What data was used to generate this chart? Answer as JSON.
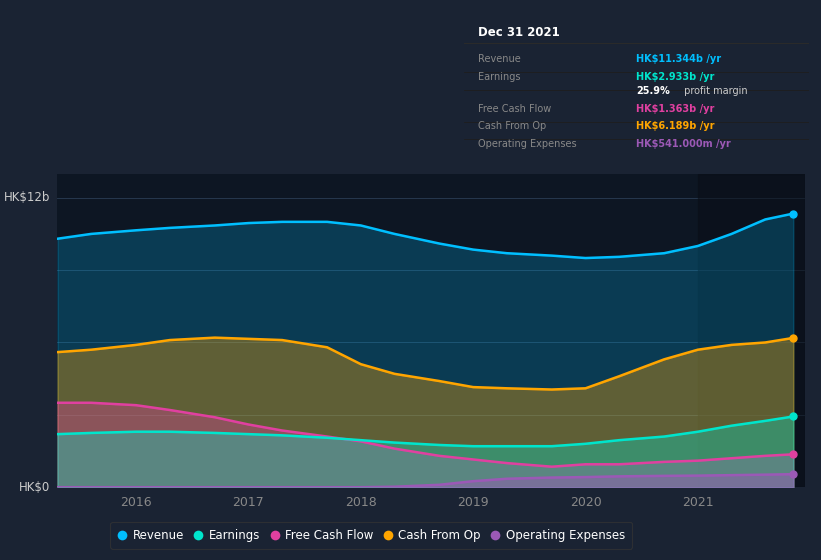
{
  "bg_color": "#1a2333",
  "plot_bg_color": "#0d1623",
  "ylabel_top": "HK$12b",
  "ylabel_bot": "HK$0",
  "xlabel_ticks": [
    "2016",
    "2017",
    "2018",
    "2019",
    "2020",
    "2021"
  ],
  "xtick_positions": [
    2016,
    2017,
    2018,
    2019,
    2020,
    2021
  ],
  "legend_items": [
    {
      "label": "Revenue",
      "color": "#00bfff"
    },
    {
      "label": "Earnings",
      "color": "#00e5cc"
    },
    {
      "label": "Free Cash Flow",
      "color": "#e040a0"
    },
    {
      "label": "Cash From Op",
      "color": "#ffa500"
    },
    {
      "label": "Operating Expenses",
      "color": "#9b59b6"
    }
  ],
  "info_box": {
    "title": "Dec 31 2021",
    "rows": [
      {
        "label": "Revenue",
        "value": "HK$11.344b /yr",
        "value_color": "#00bfff",
        "label_color": "#888888"
      },
      {
        "label": "Earnings",
        "value": "HK$2.933b /yr",
        "value_color": "#00e5cc",
        "label_color": "#888888"
      },
      {
        "label": "",
        "value": "25.9%",
        "value_color": "#ffffff",
        "label_color": "#888888",
        "suffix": " profit margin",
        "bold": true
      },
      {
        "label": "Free Cash Flow",
        "value": "HK$1.363b /yr",
        "value_color": "#e040a0",
        "label_color": "#888888"
      },
      {
        "label": "Cash From Op",
        "value": "HK$6.189b /yr",
        "value_color": "#ffa500",
        "label_color": "#888888"
      },
      {
        "label": "Operating Expenses",
        "value": "HK$541.000m /yr",
        "value_color": "#9b59b6",
        "label_color": "#888888"
      }
    ]
  },
  "series": {
    "x": [
      2015.3,
      2015.6,
      2016.0,
      2016.3,
      2016.7,
      2017.0,
      2017.3,
      2017.7,
      2018.0,
      2018.3,
      2018.7,
      2019.0,
      2019.3,
      2019.7,
      2020.0,
      2020.3,
      2020.7,
      2021.0,
      2021.3,
      2021.6,
      2021.85
    ],
    "revenue": [
      10.3,
      10.5,
      10.65,
      10.75,
      10.85,
      10.95,
      11.0,
      11.0,
      10.85,
      10.5,
      10.1,
      9.85,
      9.7,
      9.6,
      9.5,
      9.55,
      9.7,
      10.0,
      10.5,
      11.1,
      11.344
    ],
    "cashfromop": [
      5.6,
      5.7,
      5.9,
      6.1,
      6.2,
      6.15,
      6.1,
      5.8,
      5.1,
      4.7,
      4.4,
      4.15,
      4.1,
      4.05,
      4.1,
      4.6,
      5.3,
      5.7,
      5.9,
      6.0,
      6.189
    ],
    "fcf": [
      3.5,
      3.5,
      3.4,
      3.2,
      2.9,
      2.6,
      2.35,
      2.1,
      1.9,
      1.6,
      1.3,
      1.15,
      1.0,
      0.85,
      0.95,
      0.95,
      1.05,
      1.1,
      1.2,
      1.3,
      1.363
    ],
    "earnings": [
      2.2,
      2.25,
      2.3,
      2.3,
      2.25,
      2.2,
      2.15,
      2.05,
      1.95,
      1.85,
      1.75,
      1.7,
      1.7,
      1.7,
      1.8,
      1.95,
      2.1,
      2.3,
      2.55,
      2.75,
      2.933
    ],
    "opex": [
      0.0,
      0.0,
      0.0,
      0.0,
      0.0,
      0.0,
      0.0,
      0.0,
      0.0,
      0.02,
      0.1,
      0.25,
      0.35,
      0.4,
      0.42,
      0.45,
      0.47,
      0.48,
      0.5,
      0.52,
      0.541
    ]
  },
  "xlim": [
    2015.3,
    2021.95
  ],
  "ylim": [
    0,
    13
  ],
  "highlight_x_start": 2021.0,
  "highlight_x_end": 2021.95,
  "grid_levels": [
    0,
    3,
    6,
    9,
    12
  ]
}
